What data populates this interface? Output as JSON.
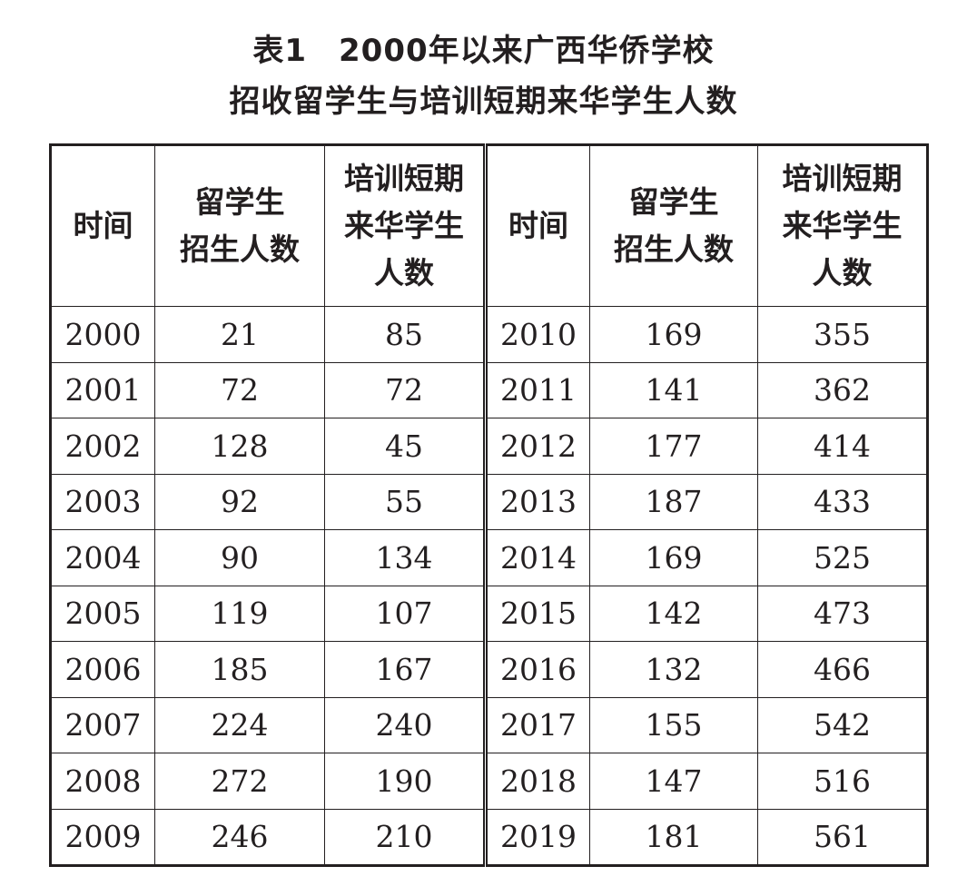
{
  "title": {
    "line1": "表1　2000年以来广西华侨学校",
    "line2": "招收留学生与培训短期来华学生人数"
  },
  "headers": [
    [
      "时间"
    ],
    [
      "留学生",
      "招生人数"
    ],
    [
      "培训短期",
      "来华学生",
      "人数"
    ],
    [
      "时间"
    ],
    [
      "留学生",
      "招生人数"
    ],
    [
      "培训短期",
      "来华学生",
      "人数"
    ]
  ],
  "rows": [
    [
      "2000",
      "21",
      "85",
      "2010",
      "169",
      "355"
    ],
    [
      "2001",
      "72",
      "72",
      "2011",
      "141",
      "362"
    ],
    [
      "2002",
      "128",
      "45",
      "2012",
      "177",
      "414"
    ],
    [
      "2003",
      "92",
      "55",
      "2013",
      "187",
      "433"
    ],
    [
      "2004",
      "90",
      "134",
      "2014",
      "169",
      "525"
    ],
    [
      "2005",
      "119",
      "107",
      "2015",
      "142",
      "473"
    ],
    [
      "2006",
      "185",
      "167",
      "2016",
      "132",
      "466"
    ],
    [
      "2007",
      "224",
      "240",
      "2017",
      "155",
      "542"
    ],
    [
      "2008",
      "272",
      "190",
      "2018",
      "147",
      "516"
    ],
    [
      "2009",
      "246",
      "210",
      "2019",
      "181",
      "561"
    ]
  ]
}
